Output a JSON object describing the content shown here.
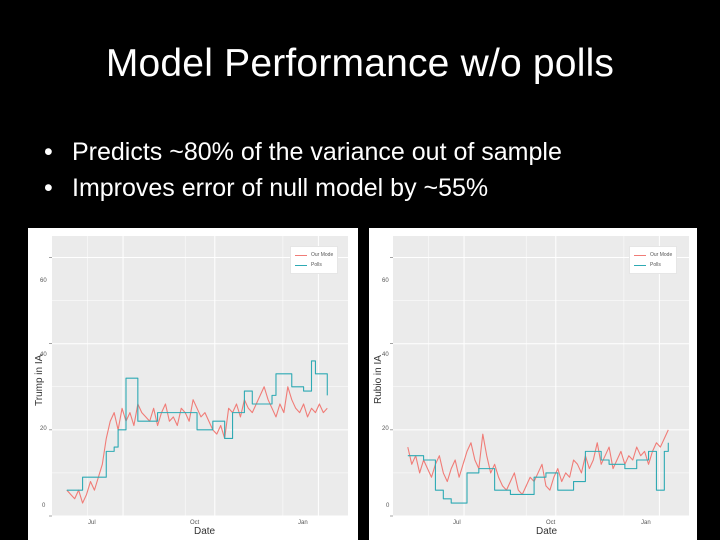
{
  "slide": {
    "title": "Model Performance w/o polls",
    "bullets": [
      "Predicts ~80% of the variance out of sample",
      "Improves error of null model by ~55%"
    ]
  },
  "colors": {
    "model": "#f07c77",
    "polls": "#2eaab4",
    "panel": "#ebebeb",
    "grid": "#ffffff"
  },
  "chart_data": [
    {
      "type": "line",
      "xlabel": "Date",
      "ylabel": "Trump  in IA",
      "ylim": [
        0,
        65
      ],
      "yticks": [
        "0",
        "20",
        "40",
        "60"
      ],
      "xticks": [
        "Jul",
        "Oct",
        "Jan"
      ],
      "legend": [
        "Our Mode",
        "Polls"
      ],
      "series": [
        {
          "name": "Our Mode",
          "values": [
            6,
            5,
            4,
            6,
            3,
            5,
            8,
            6,
            9,
            12,
            18,
            22,
            24,
            20,
            25,
            22,
            24,
            21,
            26,
            24,
            23,
            22,
            25,
            21,
            24,
            26,
            22,
            23,
            21,
            25,
            24,
            22,
            27,
            25,
            23,
            24,
            22,
            20,
            19,
            21,
            18,
            25,
            24,
            26,
            23,
            27,
            25,
            24,
            26,
            28,
            30,
            27,
            25,
            23,
            26,
            24,
            30,
            27,
            25,
            24,
            26,
            23,
            25,
            24,
            26,
            24,
            25
          ]
        },
        {
          "name": "Polls",
          "values": [
            6,
            6,
            6,
            6,
            9,
            9,
            9,
            9,
            9,
            9,
            15,
            15,
            16,
            20,
            20,
            32,
            32,
            32,
            22,
            22,
            22,
            22,
            22,
            24,
            24,
            24,
            24,
            24,
            24,
            24,
            24,
            24,
            24,
            20,
            20,
            20,
            20,
            22,
            22,
            22,
            18,
            18,
            24,
            24,
            24,
            29,
            29,
            26,
            26,
            26,
            26,
            26,
            28,
            33,
            33,
            33,
            33,
            30,
            30,
            30,
            29,
            29,
            36,
            33,
            33,
            33,
            28
          ]
        }
      ]
    },
    {
      "type": "line",
      "xlabel": "Date",
      "ylabel": "Rubio  in IA",
      "ylim": [
        0,
        65
      ],
      "yticks": [
        "0",
        "20",
        "40",
        "60"
      ],
      "xticks": [
        "Jul",
        "Oct",
        "Jan"
      ],
      "legend": [
        "Our Mode",
        "Polls"
      ],
      "series": [
        {
          "name": "Our Mode",
          "values": [
            16,
            12,
            14,
            10,
            13,
            11,
            9,
            12,
            14,
            10,
            8,
            11,
            13,
            9,
            12,
            15,
            17,
            13,
            11,
            19,
            14,
            10,
            12,
            9,
            7,
            6,
            8,
            10,
            6,
            5,
            7,
            9,
            8,
            10,
            12,
            7,
            6,
            9,
            11,
            8,
            10,
            9,
            13,
            12,
            10,
            14,
            11,
            13,
            17,
            12,
            14,
            16,
            11,
            13,
            15,
            12,
            14,
            13,
            16,
            14,
            15,
            12,
            15,
            17,
            16,
            18,
            20
          ]
        },
        {
          "name": "Polls",
          "values": [
            14,
            14,
            14,
            14,
            13,
            13,
            13,
            6,
            6,
            4,
            4,
            3,
            3,
            3,
            3,
            10,
            10,
            10,
            11,
            11,
            11,
            11,
            6,
            6,
            6,
            6,
            5,
            5,
            5,
            5,
            5,
            5,
            9,
            9,
            9,
            10,
            10,
            10,
            6,
            6,
            6,
            6,
            8,
            8,
            8,
            15,
            15,
            15,
            15,
            13,
            13,
            12,
            12,
            12,
            12,
            11,
            11,
            11,
            13,
            13,
            13,
            15,
            15,
            6,
            6,
            15,
            17
          ]
        }
      ]
    }
  ]
}
